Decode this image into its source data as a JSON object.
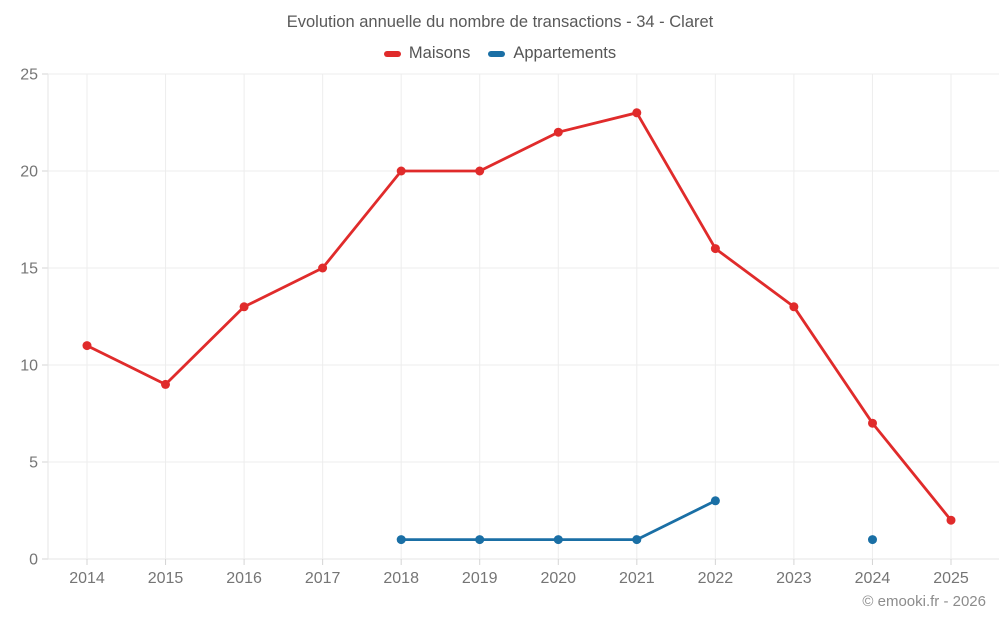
{
  "chart_data": {
    "type": "line",
    "title": "Evolution annuelle du nombre de transactions - 34 - Claret",
    "categories": [
      "2014",
      "2015",
      "2016",
      "2017",
      "2018",
      "2019",
      "2020",
      "2021",
      "2022",
      "2023",
      "2024",
      "2025"
    ],
    "series": [
      {
        "name": "Maisons",
        "color": "#e02b2b",
        "values": [
          11,
          9,
          13,
          15,
          20,
          20,
          22,
          23,
          16,
          13,
          7,
          2
        ]
      },
      {
        "name": "Appartements",
        "color": "#1a6fa5",
        "values": [
          null,
          null,
          null,
          null,
          1,
          1,
          1,
          1,
          3,
          null,
          1,
          null
        ]
      }
    ],
    "xlabel": "",
    "ylabel": "",
    "ylim": [
      0,
      25
    ],
    "yticks": [
      0,
      5,
      10,
      15,
      20,
      25
    ],
    "grid": true,
    "legend_position": "top",
    "marker": "circle"
  },
  "footer": {
    "copyright": "© emooki.fr - 2026"
  },
  "colors": {
    "background": "#ffffff",
    "grid": "#ededed",
    "axis_line": "#e6e6e6",
    "tick": "#d4d4d4",
    "tick_label": "#757575",
    "title_text": "#595959",
    "legend_text": "#555555",
    "copyright_text": "#8c8c8c"
  }
}
